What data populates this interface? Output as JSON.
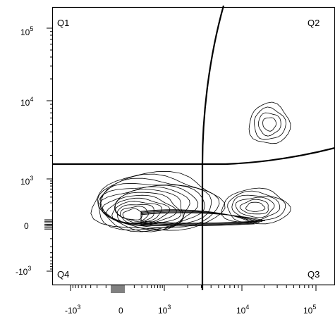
{
  "chart_data": {
    "type": "contour",
    "title": "",
    "xlabel": "",
    "ylabel": "",
    "x_scale": "biexponential",
    "y_scale": "biexponential",
    "x_ticks": [
      {
        "base": "-10",
        "exp": "3",
        "value": -1000
      },
      {
        "base": "0",
        "exp": "",
        "value": 0
      },
      {
        "base": "10",
        "exp": "3",
        "value": 1000
      },
      {
        "base": "10",
        "exp": "4",
        "value": 10000
      },
      {
        "base": "10",
        "exp": "5",
        "value": 100000
      }
    ],
    "y_ticks": [
      {
        "base": "10",
        "exp": "5",
        "value": 100000
      },
      {
        "base": "10",
        "exp": "4",
        "value": 10000
      },
      {
        "base": "10",
        "exp": "3",
        "value": 1000
      },
      {
        "base": "0",
        "exp": "",
        "value": 0
      },
      {
        "base": "-10",
        "exp": "3",
        "value": -1000
      }
    ],
    "quadrants": [
      {
        "label": "Q1",
        "position": "top-left"
      },
      {
        "label": "Q2",
        "position": "top-right"
      },
      {
        "label": "Q3",
        "position": "bottom-right"
      },
      {
        "label": "Q4",
        "position": "bottom-left"
      }
    ],
    "gates": {
      "x_threshold": 2700,
      "y_threshold": 1500
    },
    "populations": [
      {
        "name": "",
        "center_x": 150,
        "center_y": 200,
        "levels": 14
      },
      {
        "name": "",
        "center_x": 18000,
        "center_y": 350,
        "levels": 6
      },
      {
        "name": "",
        "center_x": 22000,
        "center_y": 5000,
        "levels": 4
      }
    ]
  }
}
